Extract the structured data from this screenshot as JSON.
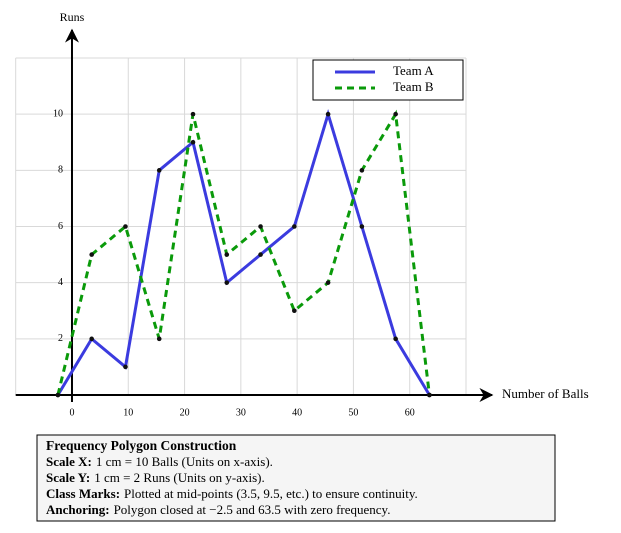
{
  "chart_data": {
    "type": "line",
    "x_label": "Number of Balls",
    "y_label": "Runs",
    "x": [
      -2.5,
      3.5,
      9.5,
      15.5,
      21.5,
      27.5,
      33.5,
      39.5,
      45.5,
      51.5,
      57.5,
      63.5
    ],
    "series": [
      {
        "name": "Team A",
        "color": "#3b3bdf",
        "dashed": false,
        "values": [
          0,
          2,
          1,
          8,
          9,
          4,
          5,
          6,
          10,
          6,
          2,
          0
        ]
      },
      {
        "name": "Team B",
        "color": "#0a9a0a",
        "dashed": true,
        "values": [
          0,
          5,
          6,
          2,
          10,
          5,
          6,
          3,
          4,
          8,
          10,
          0
        ]
      }
    ],
    "xlim": [
      -10,
      70
    ],
    "ylim": [
      0,
      12
    ],
    "xticks": [
      0,
      10,
      20,
      30,
      40,
      50,
      60
    ],
    "yticks": [
      2,
      4,
      6,
      8,
      10
    ],
    "grid": true,
    "legend": "top-right"
  },
  "note": {
    "title": "Frequency Polygon Construction",
    "lines": [
      {
        "label": "Scale X:",
        "text": "1 cm = 10 Balls (Units on x-axis)."
      },
      {
        "label": "Scale Y:",
        "text": "1 cm = 2 Runs (Units on y-axis)."
      },
      {
        "label": "Class Marks:",
        "text": "Plotted at mid-points (3.5, 9.5, etc.) to ensure continuity."
      },
      {
        "label": "Anchoring:",
        "text": "Polygon closed at −2.5 and 63.5 with zero frequency."
      }
    ]
  }
}
